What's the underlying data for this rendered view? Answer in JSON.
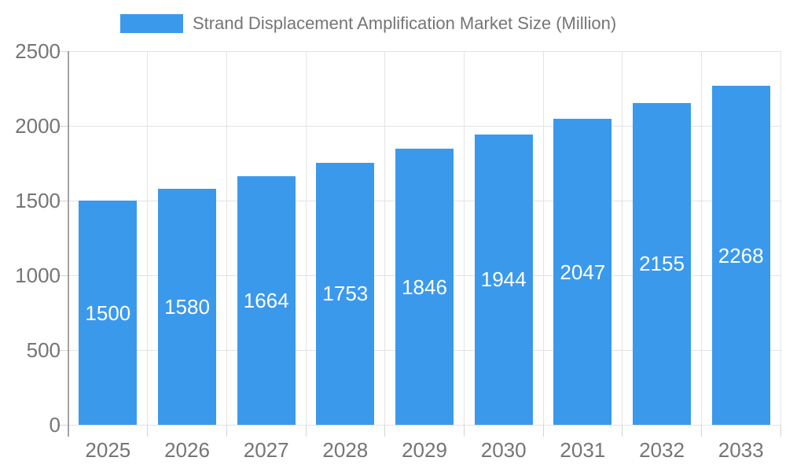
{
  "legend": {
    "series_label": "Strand Displacement Amplification Market Size (Million)"
  },
  "chart_data": {
    "type": "bar",
    "title": "Strand Displacement Amplification Market Size (Million)",
    "categories": [
      "2025",
      "2026",
      "2027",
      "2028",
      "2029",
      "2030",
      "2031",
      "2032",
      "2033"
    ],
    "values": [
      1500,
      1580,
      1664,
      1753,
      1846,
      1944,
      2047,
      2155,
      2268
    ],
    "xlabel": "",
    "ylabel": "",
    "ylim": [
      0,
      2500
    ],
    "ytick_step": 500,
    "yticks": [
      "0",
      "500",
      "1000",
      "1500",
      "2000",
      "2500"
    ],
    "grid": true,
    "legend_position": "top",
    "bar_labels_inside": true,
    "colors": {
      "bar": "#3B99EC",
      "bar_label": "#ffffff",
      "axis_text": "#757575",
      "gridline": "#e3e3e3",
      "tick": "#d4d4d4",
      "axis_line": "#a3a3a3",
      "background": "#ffffff"
    }
  }
}
